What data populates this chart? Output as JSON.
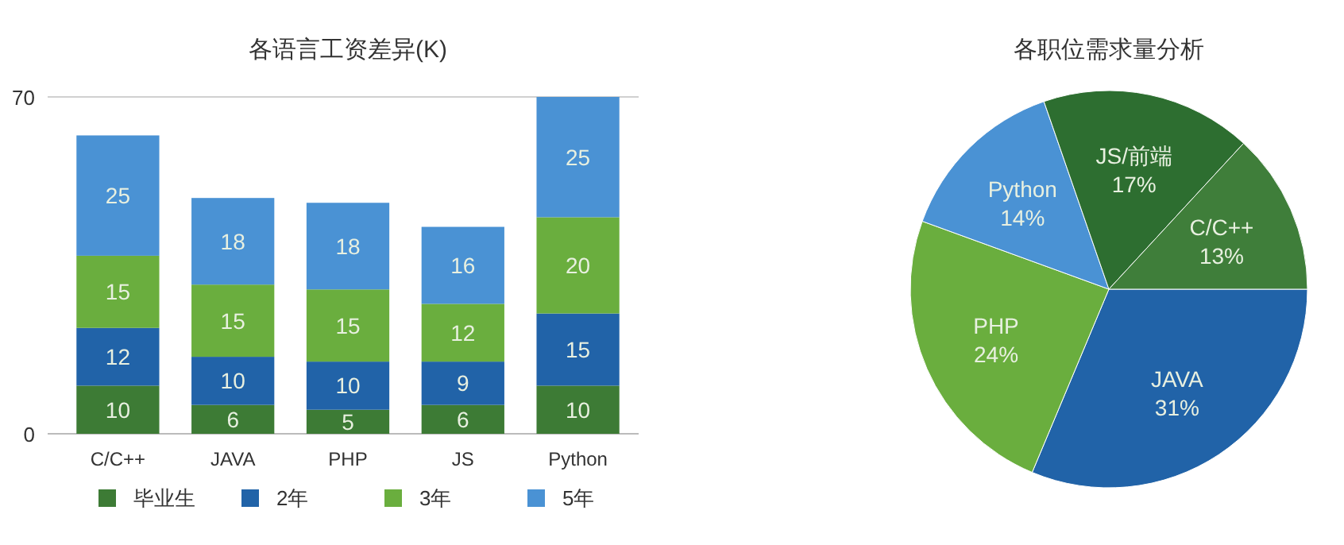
{
  "chart_data": [
    {
      "type": "bar",
      "title": "各语言工资差异(K)",
      "stacked": true,
      "categories": [
        "C/C++",
        "JAVA",
        "PHP",
        "JS",
        "Python"
      ],
      "series": [
        {
          "name": "毕业生",
          "color": "#3d7b35",
          "values": [
            10,
            6,
            5,
            6,
            10
          ]
        },
        {
          "name": "2年",
          "color": "#2163a8",
          "values": [
            12,
            10,
            10,
            9,
            15
          ]
        },
        {
          "name": "3年",
          "color": "#6aae3e",
          "values": [
            15,
            15,
            15,
            12,
            20
          ]
        },
        {
          "name": "5年",
          "color": "#4a92d4",
          "values": [
            25,
            18,
            18,
            16,
            25
          ]
        }
      ],
      "ylim": [
        0,
        70
      ],
      "yticks": [
        0,
        70
      ],
      "legend": "bottom",
      "data_labels": true
    },
    {
      "type": "pie",
      "title": "各职位需求量分析",
      "categories": [
        "JAVA",
        "PHP",
        "Python",
        "JS/前端",
        "C/C++"
      ],
      "values": [
        31,
        24,
        14,
        17,
        13
      ],
      "value_labels": [
        "31%",
        "24%",
        "14%",
        "17%",
        "13%"
      ],
      "colors": [
        "#2163a8",
        "#6aae3e",
        "#4a92d4",
        "#2d6e30",
        "#3f7e3a"
      ]
    }
  ]
}
